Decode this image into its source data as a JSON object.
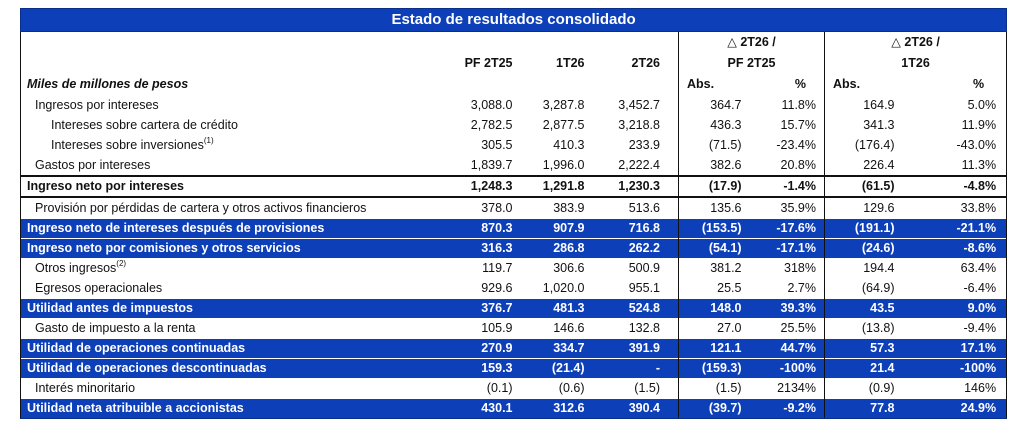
{
  "title": "Estado de resultados consolidado",
  "subtitle": "Miles de millones de pesos",
  "headers": {
    "pf2t25": "PF 2T25",
    "t1": "1T26",
    "t2": "2T26",
    "delta_pf_line1": "△ 2T26 /",
    "delta_pf_line2": "PF 2T25",
    "delta_1t_line1": "△ 2T26 /",
    "delta_1t_line2": "1T26",
    "abs": "Abs.",
    "pct": "%"
  },
  "rows": [
    {
      "label": "Ingresos por intereses",
      "sup": "",
      "style": "plain",
      "indent": 1,
      "v": [
        "3,088.0",
        "3,287.8",
        "3,452.7",
        "364.7",
        "11.8%",
        "164.9",
        "5.0%"
      ]
    },
    {
      "label": "Intereses sobre cartera de crédito",
      "sup": "",
      "style": "plain",
      "indent": 2,
      "v": [
        "2,782.5",
        "2,877.5",
        "3,218.8",
        "436.3",
        "15.7%",
        "341.3",
        "11.9%"
      ]
    },
    {
      "label": "Intereses sobre inversiones",
      "sup": "(1)",
      "style": "plain",
      "indent": 2,
      "v": [
        "305.5",
        "410.3",
        "233.9",
        "(71.5)",
        "-23.4%",
        "(176.4)",
        "-43.0%"
      ]
    },
    {
      "label": "Gastos por intereses",
      "sup": "",
      "style": "plain",
      "indent": 1,
      "v": [
        "1,839.7",
        "1,996.0",
        "2,222.4",
        "382.6",
        "20.8%",
        "226.4",
        "11.3%"
      ]
    },
    {
      "label": "Ingreso neto por intereses",
      "sup": "",
      "style": "bold",
      "indent": 0,
      "v": [
        "1,248.3",
        "1,291.8",
        "1,230.3",
        "(17.9)",
        "-1.4%",
        "(61.5)",
        "-4.8%"
      ]
    },
    {
      "label": "Provisión por pérdidas de cartera y otros activos financieros",
      "sup": "",
      "style": "plain",
      "indent": 1,
      "v": [
        "378.0",
        "383.9",
        "513.6",
        "135.6",
        "35.9%",
        "129.6",
        "33.8%"
      ]
    },
    {
      "label": "Ingreso neto de intereses después de provisiones",
      "sup": "",
      "style": "blue",
      "indent": 0,
      "v": [
        "870.3",
        "907.9",
        "716.8",
        "(153.5)",
        "-17.6%",
        "(191.1)",
        "-21.1%"
      ]
    },
    {
      "label": "Ingreso neto por comisiones y otros servicios",
      "sup": "",
      "style": "blue",
      "indent": 0,
      "v": [
        "316.3",
        "286.8",
        "262.2",
        "(54.1)",
        "-17.1%",
        "(24.6)",
        "-8.6%"
      ]
    },
    {
      "label": "Otros ingresos",
      "sup": "(2)",
      "style": "plain",
      "indent": 1,
      "v": [
        "119.7",
        "306.6",
        "500.9",
        "381.2",
        "318%",
        "194.4",
        "63.4%"
      ]
    },
    {
      "label": "Egresos operacionales",
      "sup": "",
      "style": "plain",
      "indent": 1,
      "v": [
        "929.6",
        "1,020.0",
        "955.1",
        "25.5",
        "2.7%",
        "(64.9)",
        "-6.4%"
      ]
    },
    {
      "label": "Utilidad antes de impuestos",
      "sup": "",
      "style": "blue",
      "indent": 0,
      "v": [
        "376.7",
        "481.3",
        "524.8",
        "148.0",
        "39.3%",
        "43.5",
        "9.0%"
      ]
    },
    {
      "label": "Gasto de impuesto a la renta",
      "sup": "",
      "style": "plain",
      "indent": 1,
      "v": [
        "105.9",
        "146.6",
        "132.8",
        "27.0",
        "25.5%",
        "(13.8)",
        "-9.4%"
      ]
    },
    {
      "label": "Utilidad de operaciones continuadas",
      "sup": "",
      "style": "blue",
      "indent": 0,
      "v": [
        "270.9",
        "334.7",
        "391.9",
        "121.1",
        "44.7%",
        "57.3",
        "17.1%"
      ]
    },
    {
      "label": "Utilidad de operaciones descontinuadas",
      "sup": "",
      "style": "blue",
      "indent": 0,
      "v": [
        "159.3",
        "(21.4)",
        "-",
        "(159.3)",
        "-100%",
        "21.4",
        "-100%"
      ]
    },
    {
      "label": "Interés minoritario",
      "sup": "",
      "style": "plain",
      "indent": 1,
      "v": [
        "(0.1)",
        "(0.6)",
        "(1.5)",
        "(1.5)",
        "2134%",
        "(0.9)",
        "146%"
      ]
    },
    {
      "label": "Utilidad neta atribuible a accionistas",
      "sup": "",
      "style": "blue",
      "indent": 0,
      "v": [
        "430.1",
        "312.6",
        "390.4",
        "(39.7)",
        "-9.2%",
        "77.8",
        "24.9%"
      ]
    }
  ]
}
